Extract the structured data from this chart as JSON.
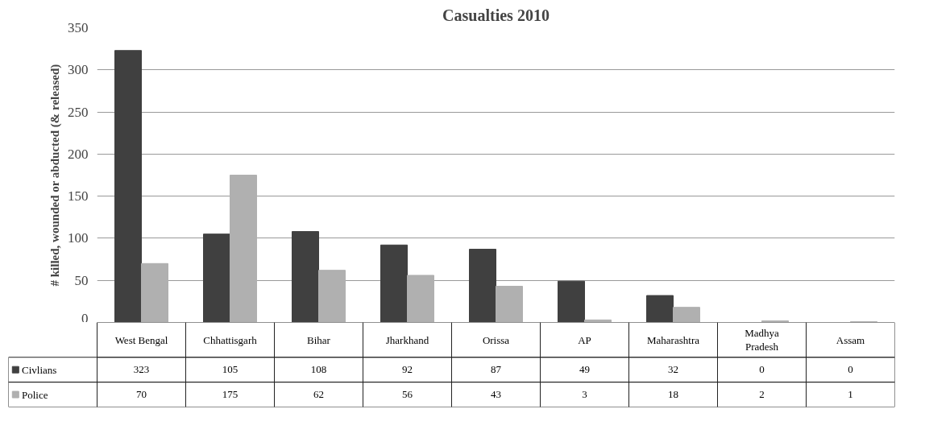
{
  "chart_data": {
    "type": "bar",
    "title": "Casualties 2010",
    "ylabel": "# killed, wounded or abducted (& released)",
    "categories": [
      "West Bengal",
      "Chhattisgarh",
      "Bihar",
      "Jharkhand",
      "Orissa",
      "AP",
      "Maharashtra",
      "Madhya Pradesh",
      "Assam"
    ],
    "series": [
      {
        "name": "Civlians",
        "color": "#404040",
        "values": [
          323,
          105,
          108,
          92,
          87,
          49,
          32,
          0,
          0
        ]
      },
      {
        "name": "Police",
        "color": "#b0b0b0",
        "values": [
          70,
          175,
          62,
          56,
          43,
          3,
          18,
          2,
          1
        ]
      }
    ],
    "ylim": [
      0,
      350
    ],
    "yticks": [
      0,
      50,
      100,
      150,
      200,
      250,
      300,
      350
    ],
    "grid": "y",
    "legend": "bottom",
    "data_labels": true
  }
}
